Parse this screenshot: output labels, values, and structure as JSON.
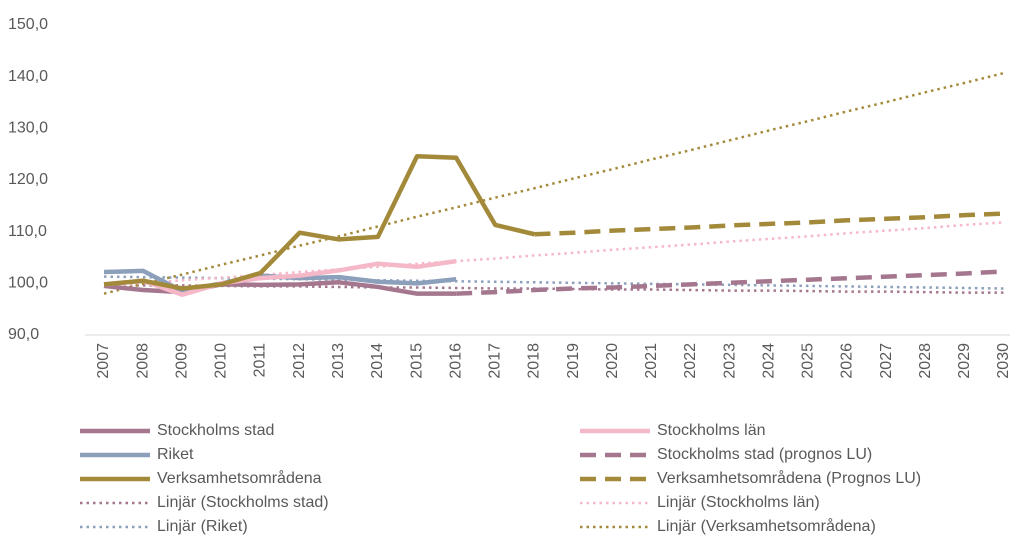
{
  "chart_data": {
    "type": "line",
    "categories": [
      "2007",
      "2008",
      "2009",
      "2010",
      "2011",
      "2012",
      "2013",
      "2014",
      "2015",
      "2016",
      "2017",
      "2018",
      "2019",
      "2020",
      "2021",
      "2022",
      "2023",
      "2024",
      "2025",
      "2026",
      "2027",
      "2028",
      "2029",
      "2030"
    ],
    "ylim": [
      90,
      150
    ],
    "yticks": [
      {
        "value": 90,
        "label": "90,0"
      },
      {
        "value": 100,
        "label": "100,0"
      },
      {
        "value": 110,
        "label": "110,0"
      },
      {
        "value": 120,
        "label": "120,0"
      },
      {
        "value": 130,
        "label": "130,0"
      },
      {
        "value": 140,
        "label": "140,0"
      },
      {
        "value": 150,
        "label": "150,0"
      }
    ],
    "grid": false,
    "legend": "bottom",
    "series": [
      {
        "name": "Stockholms stad",
        "color": "#a5778f",
        "style": "solid",
        "values": [
          99.5,
          98.7,
          98.3,
          99.8,
          99.7,
          99.8,
          100.2,
          99.3,
          98.0,
          98.0,
          null,
          null,
          null,
          null,
          null,
          null,
          null,
          null,
          null,
          null,
          null,
          null,
          null,
          null
        ]
      },
      {
        "name": "Stockholms län",
        "color": "#f5b8c9",
        "style": "solid",
        "values": [
          99.8,
          100.5,
          97.8,
          100.0,
          101.0,
          101.5,
          102.5,
          103.8,
          103.2,
          104.3,
          null,
          null,
          null,
          null,
          null,
          null,
          null,
          null,
          null,
          null,
          null,
          null,
          null,
          null
        ]
      },
      {
        "name": "Riket",
        "color": "#8c9fbb",
        "style": "solid",
        "values": [
          102.2,
          102.4,
          98.5,
          100.0,
          101.5,
          101.0,
          101.2,
          100.3,
          100.0,
          100.8,
          null,
          null,
          null,
          null,
          null,
          null,
          null,
          null,
          null,
          null,
          null,
          null,
          null,
          null
        ]
      },
      {
        "name": "Stockholms stad (prognos LU)",
        "color": "#a5778f",
        "style": "dashed",
        "values": [
          null,
          null,
          null,
          null,
          null,
          null,
          null,
          null,
          null,
          98.0,
          98.3,
          98.7,
          99.0,
          99.2,
          99.5,
          99.8,
          100.1,
          100.4,
          100.7,
          101.0,
          101.3,
          101.6,
          101.9,
          102.3
        ]
      },
      {
        "name": "Verksamhetsområdena",
        "color": "#a38a3a",
        "style": "solid",
        "values": [
          99.8,
          100.5,
          99.0,
          99.8,
          102.0,
          109.8,
          108.5,
          109.0,
          124.6,
          124.3,
          111.3,
          109.5,
          null,
          null,
          null,
          null,
          null,
          null,
          null,
          null,
          null,
          null,
          null,
          null
        ]
      },
      {
        "name": "Verksamhetsområdena (Prognos LU)",
        "color": "#a38a3a",
        "style": "dashed",
        "values": [
          null,
          null,
          null,
          null,
          null,
          null,
          null,
          null,
          null,
          null,
          null,
          109.5,
          109.8,
          110.2,
          110.5,
          110.8,
          111.2,
          111.5,
          111.8,
          112.2,
          112.5,
          112.8,
          113.2,
          113.5
        ]
      },
      {
        "name": "Linjär (Stockholms stad)",
        "color": "#a5778f",
        "style": "dotted",
        "values": [
          99.7,
          99.6,
          99.6,
          99.5,
          99.4,
          99.4,
          99.3,
          99.2,
          99.2,
          99.1,
          99.0,
          99.0,
          98.9,
          98.8,
          98.8,
          98.7,
          98.6,
          98.6,
          98.5,
          98.4,
          98.4,
          98.3,
          98.2,
          98.2
        ]
      },
      {
        "name": "Linjär (Stockholms län)",
        "color": "#f5b8c9",
        "style": "dotted",
        "values": [
          99.5,
          100.0,
          100.6,
          101.1,
          101.6,
          102.2,
          102.7,
          103.2,
          103.8,
          104.3,
          104.8,
          105.4,
          105.9,
          106.5,
          107.0,
          107.5,
          108.1,
          108.6,
          109.1,
          109.7,
          110.2,
          110.7,
          111.3,
          111.8
        ]
      },
      {
        "name": "Linjär (Riket)",
        "color": "#8c9fbb",
        "style": "dotted",
        "values": [
          101.3,
          101.2,
          101.1,
          101.0,
          100.9,
          100.8,
          100.7,
          100.6,
          100.5,
          100.4,
          100.3,
          100.2,
          100.1,
          100.0,
          99.9,
          99.8,
          99.7,
          99.6,
          99.5,
          99.4,
          99.3,
          99.2,
          99.1,
          99.0
        ]
      },
      {
        "name": "Linjär (Verksamhetsområdena)",
        "color": "#a38a3a",
        "style": "dotted",
        "values": [
          98.0,
          99.9,
          101.7,
          103.6,
          105.4,
          107.3,
          109.1,
          111.0,
          112.9,
          114.7,
          116.6,
          118.4,
          120.3,
          122.1,
          124.0,
          125.8,
          127.7,
          129.6,
          131.4,
          133.3,
          135.1,
          137.0,
          138.8,
          140.7
        ]
      }
    ]
  }
}
